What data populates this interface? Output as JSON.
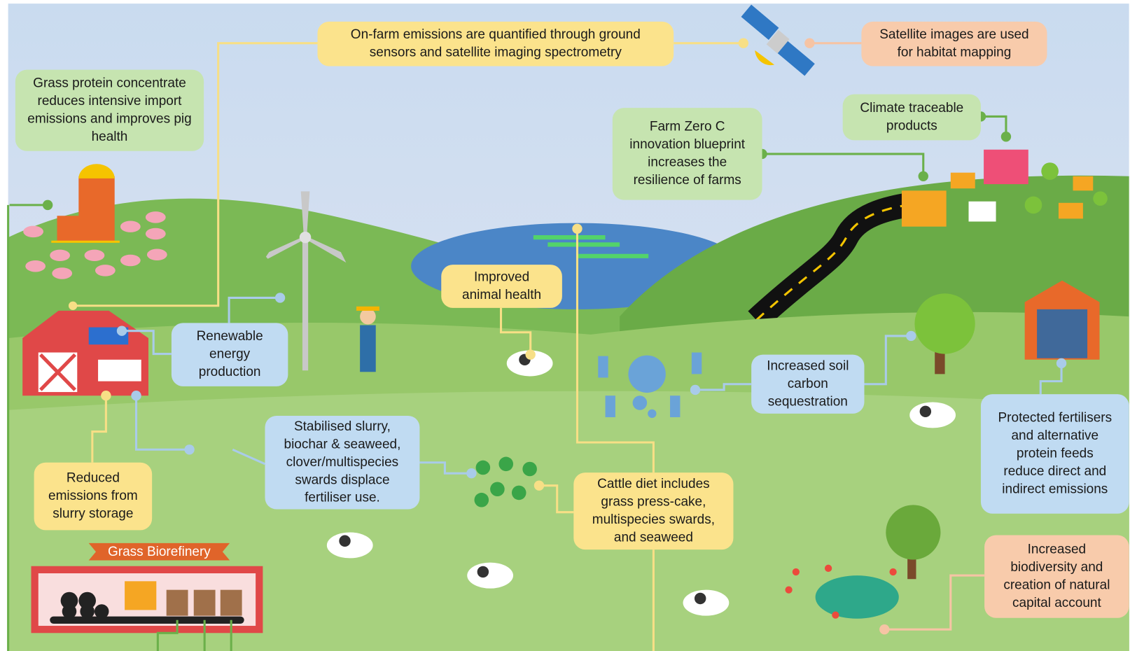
{
  "banner": "Grass Biorefinery",
  "callouts": [
    {
      "lines": [
        "On-farm emissions are quantified through ground",
        "sensors and satellite imaging spectrometry"
      ]
    },
    {
      "lines": [
        "Satellite images are used",
        "for habitat mapping"
      ]
    },
    {
      "lines": [
        "Grass protein concentrate",
        "reduces intensive import",
        "emissions and improves pig",
        "health"
      ]
    },
    {
      "lines": [
        "Farm Zero C",
        "innovation blueprint",
        "increases the",
        "resilience of farms"
      ]
    },
    {
      "lines": [
        "Climate traceable",
        "products"
      ]
    },
    {
      "lines": [
        "Improved",
        "animal health"
      ]
    },
    {
      "lines": [
        "Renewable",
        "energy",
        "production"
      ]
    },
    {
      "lines": [
        "Increased soil",
        "carbon",
        "sequestration"
      ]
    },
    {
      "lines": [
        "Stabilised slurry,",
        "biochar & seaweed,",
        "clover/multispecies",
        "swards displace",
        "fertiliser use."
      ]
    },
    {
      "lines": [
        "Protected fertilisers",
        "and alternative",
        "protein feeds",
        "reduce direct and",
        "indirect emissions"
      ]
    },
    {
      "lines": [
        "Reduced",
        "emissions from",
        "slurry storage"
      ]
    },
    {
      "lines": [
        "Cattle diet includes",
        "grass press-cake,",
        "multispecies swards,",
        "and seaweed"
      ]
    },
    {
      "lines": [
        "Increased",
        "biodiversity and",
        "creation of natural",
        "capital account"
      ]
    }
  ]
}
